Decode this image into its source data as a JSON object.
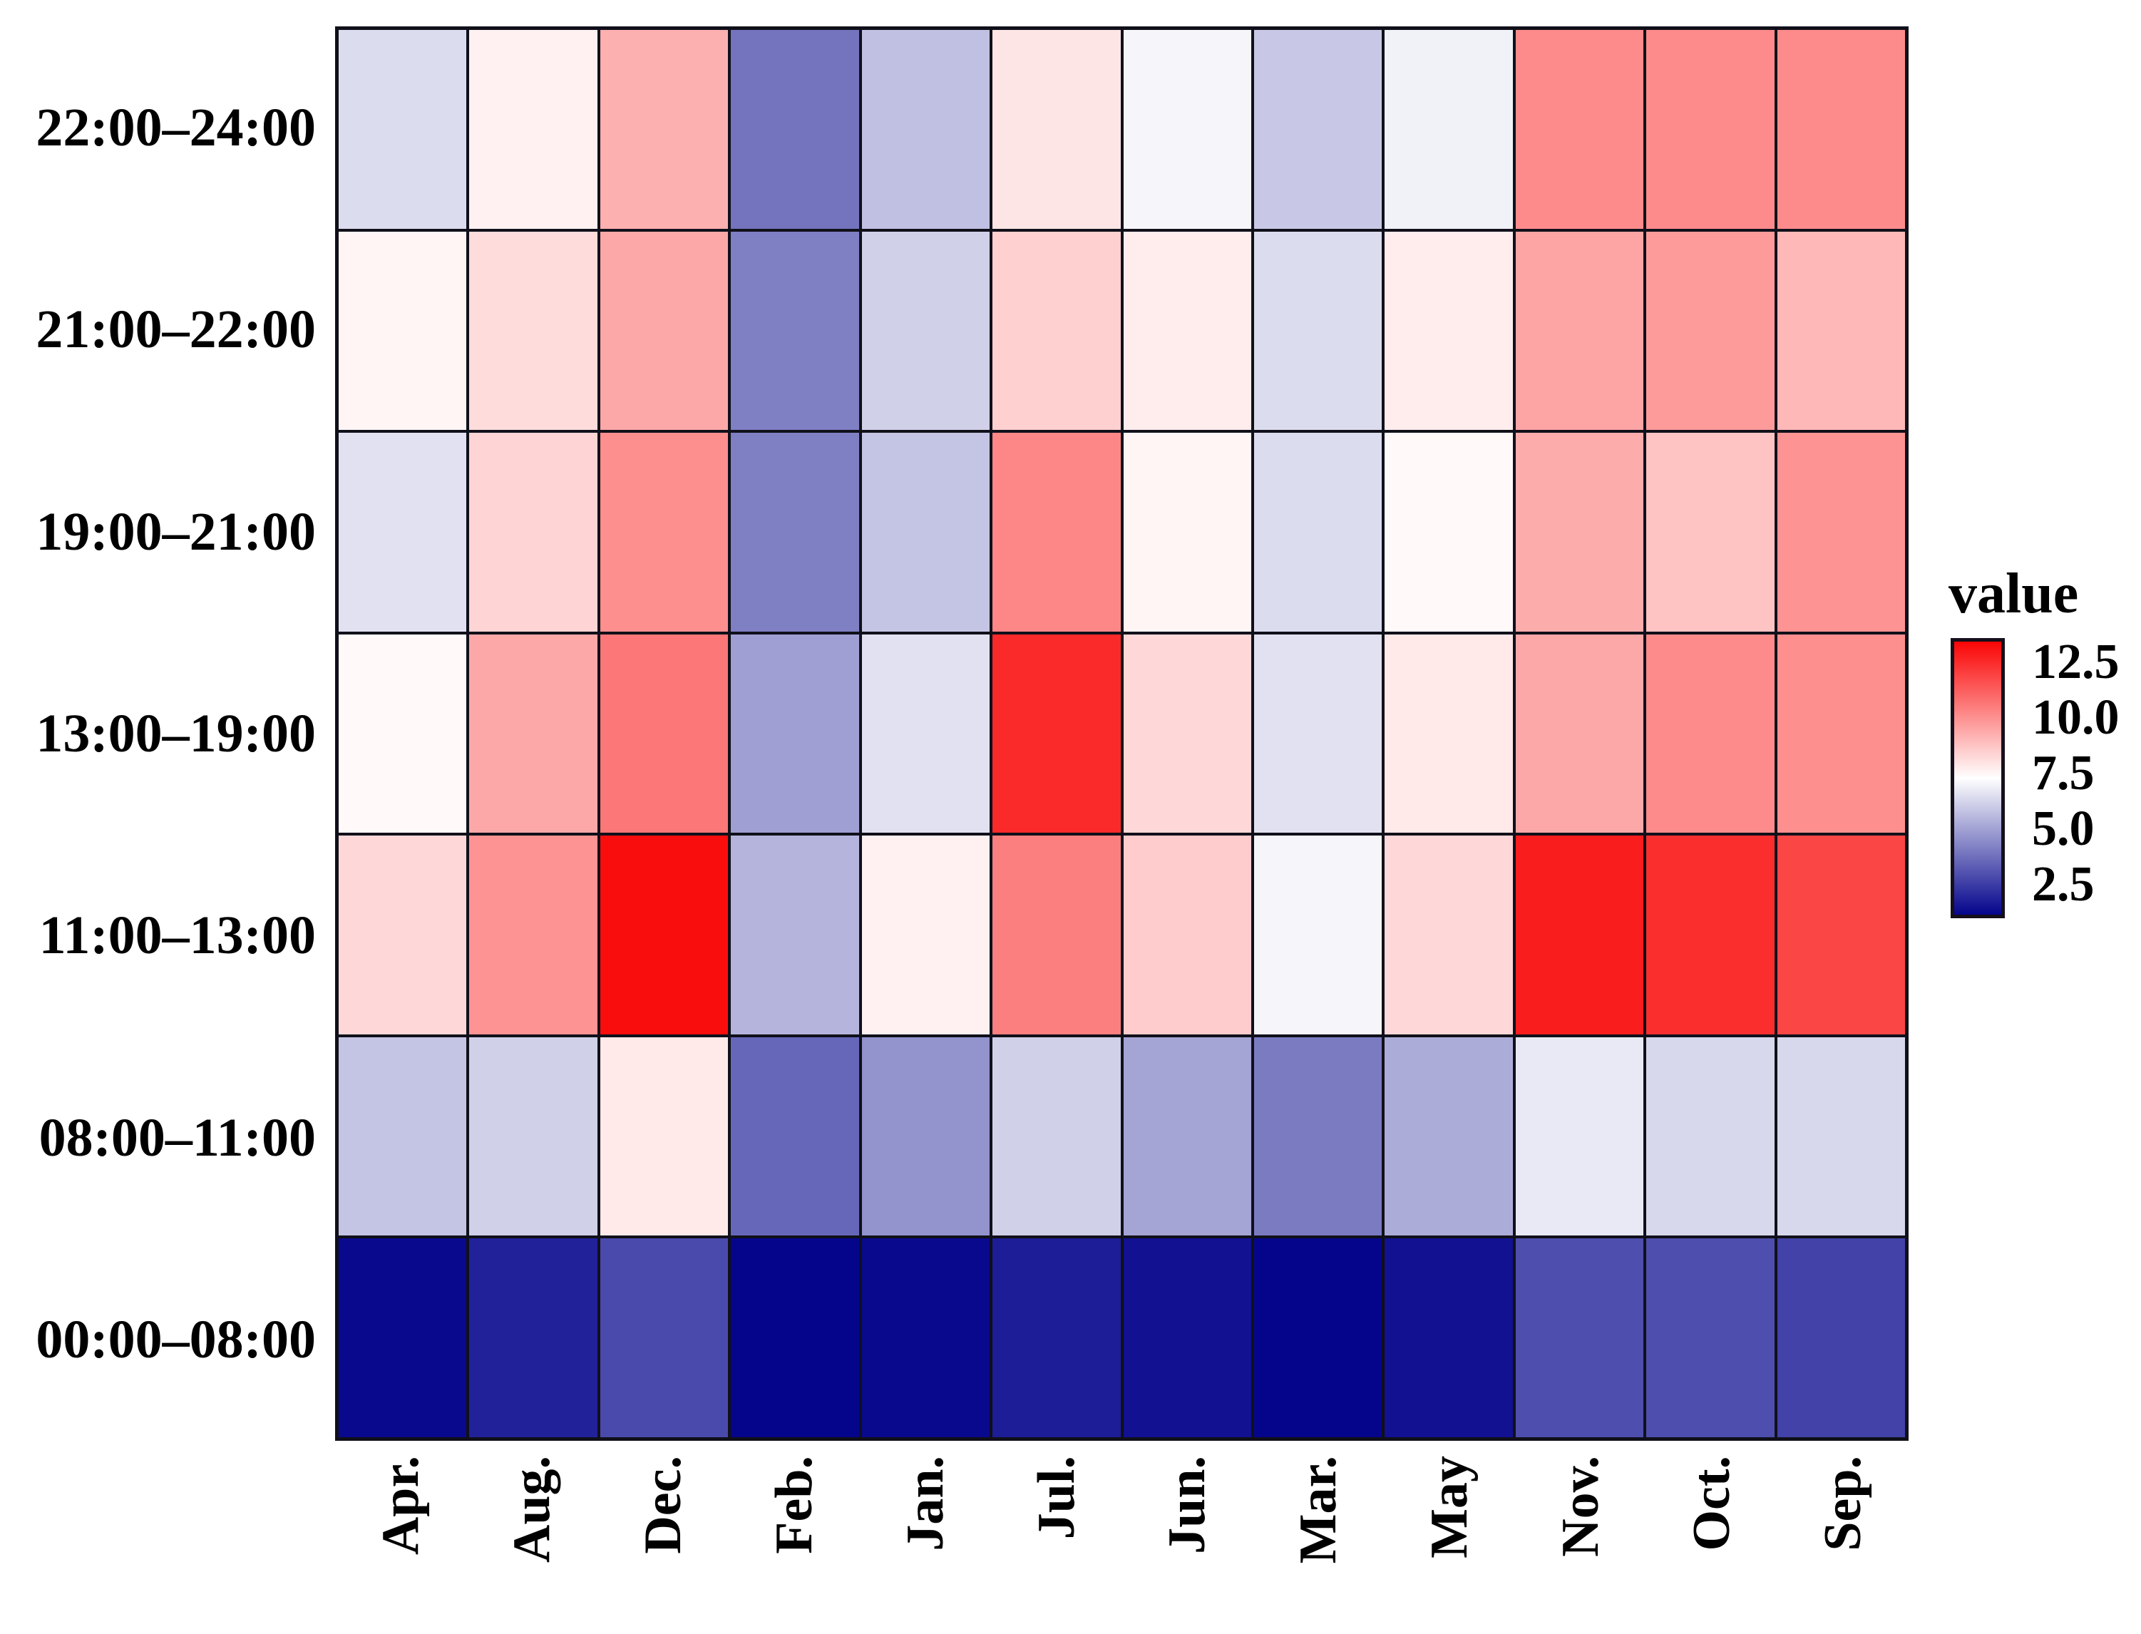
{
  "chart_data": {
    "type": "heatmap",
    "title": "",
    "xlabel": "",
    "ylabel": "",
    "grid": "off",
    "x_categories": [
      "Apr.",
      "Aug.",
      "Dec.",
      "Feb.",
      "Jan.",
      "Jul.",
      "Jun.",
      "Mar.",
      "May",
      "Nov.",
      "Oct.",
      "Sep."
    ],
    "y_categories": [
      "22:00–24:00",
      "21:00–22:00",
      "19:00–21:00",
      "13:00–19:00",
      "11:00–13:00",
      "08:00–11:00",
      "00:00–08:00"
    ],
    "values": [
      [
        6.6,
        7.8,
        9.4,
        4.0,
        5.9,
        8.1,
        7.2,
        6.1,
        7.1,
        10.3,
        10.3,
        10.3
      ],
      [
        7.7,
        8.3,
        9.6,
        4.3,
        6.3,
        8.6,
        7.9,
        6.6,
        7.9,
        9.7,
        9.9,
        9.2
      ],
      [
        6.7,
        8.5,
        10.2,
        4.3,
        6.0,
        10.4,
        7.7,
        6.6,
        7.6,
        9.5,
        8.9,
        10.1
      ],
      [
        7.6,
        9.6,
        10.8,
        5.1,
        6.7,
        12.7,
        8.4,
        6.7,
        8.0,
        9.6,
        10.3,
        10.2
      ],
      [
        8.4,
        10.1,
        13.4,
        5.6,
        7.8,
        10.6,
        8.7,
        7.2,
        8.4,
        13.0,
        12.6,
        12.0
      ],
      [
        6.0,
        6.3,
        8.0,
        3.7,
        4.8,
        6.3,
        5.2,
        4.2,
        5.4,
        6.9,
        6.5,
        6.5
      ],
      [
        1.4,
        2.0,
        3.0,
        1.1,
        1.4,
        1.9,
        1.6,
        1.1,
        1.6,
        3.1,
        3.1,
        2.8
      ]
    ],
    "legend": {
      "position": "right",
      "title": "value",
      "tick_labels": [
        "12.5",
        "10.0",
        "7.5",
        "5.0",
        "2.5"
      ],
      "tick_values": [
        12.5,
        10.0,
        7.5,
        5.0,
        2.5
      ]
    },
    "scale": {
      "min": 1.3,
      "mid": 7.45,
      "max": 13.6,
      "low_color": "#05058c",
      "mid_color": "#ffffff",
      "high_color": "#fa0505"
    },
    "grid_line_color": "#10101a"
  }
}
